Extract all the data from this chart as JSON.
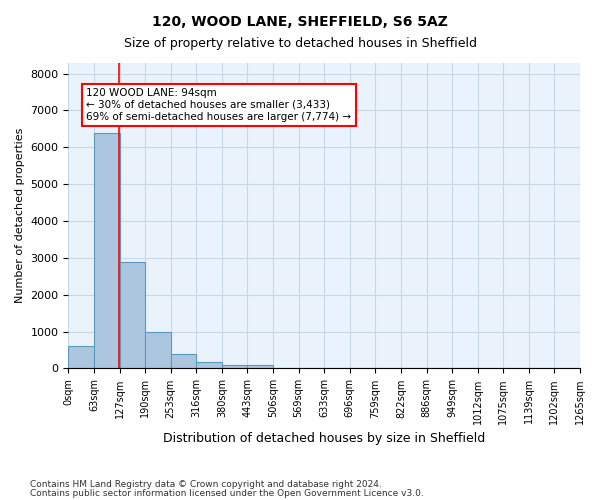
{
  "title1": "120, WOOD LANE, SHEFFIELD, S6 5AZ",
  "title2": "Size of property relative to detached houses in Sheffield",
  "xlabel": "Distribution of detached houses by size in Sheffield",
  "ylabel": "Number of detached properties",
  "footer1": "Contains HM Land Registry data © Crown copyright and database right 2024.",
  "footer2": "Contains public sector information licensed under the Open Government Licence v3.0.",
  "bar_color": "#adc6e0",
  "bar_edge_color": "#5a9abd",
  "grid_color": "#c8d8e8",
  "background_color": "#eaf3fb",
  "bin_labels": [
    "0sqm",
    "63sqm",
    "127sqm",
    "190sqm",
    "253sqm",
    "316sqm",
    "380sqm",
    "443sqm",
    "506sqm",
    "569sqm",
    "633sqm",
    "696sqm",
    "759sqm",
    "822sqm",
    "886sqm",
    "949sqm",
    "1012sqm",
    "1075sqm",
    "1139sqm",
    "1202sqm",
    "1265sqm"
  ],
  "bar_values": [
    620,
    6400,
    2900,
    1000,
    380,
    180,
    90,
    80,
    0,
    0,
    0,
    0,
    0,
    0,
    0,
    0,
    0,
    0,
    0,
    0
  ],
  "red_line_x": 1.49,
  "annotation_text": "120 WOOD LANE: 94sqm\n← 30% of detached houses are smaller (3,433)\n69% of semi-detached houses are larger (7,774) →",
  "ylim": [
    0,
    8300
  ],
  "yticks": [
    0,
    1000,
    2000,
    3000,
    4000,
    5000,
    6000,
    7000,
    8000
  ]
}
